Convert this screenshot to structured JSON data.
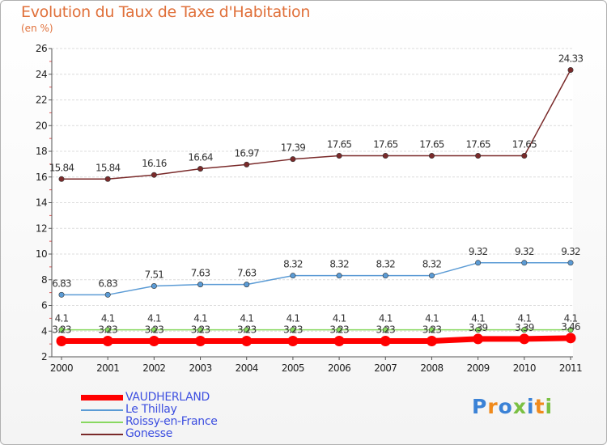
{
  "title": "Evolution du Taux de Taxe d'Habitation",
  "unit": "(en %)",
  "logo": "Proxiti",
  "chart_data": {
    "type": "line",
    "title": "Evolution du Taux de Taxe d'Habitation",
    "ylabel": "(en %)",
    "xlabel": "",
    "categories": [
      "2000",
      "2001",
      "2002",
      "2003",
      "2004",
      "2005",
      "2006",
      "2007",
      "2008",
      "2009",
      "2010",
      "2011"
    ],
    "ylim": [
      2,
      26
    ],
    "yticks": [
      2,
      4,
      6,
      8,
      10,
      12,
      14,
      16,
      18,
      20,
      22,
      24,
      26
    ],
    "series": [
      {
        "name": "VAUDHERLAND",
        "color": "#ff0000",
        "values": [
          3.23,
          3.23,
          3.23,
          3.23,
          3.23,
          3.23,
          3.23,
          3.23,
          3.23,
          3.39,
          3.39,
          3.46
        ],
        "labels": [
          "3.23",
          "3.23",
          "3.23",
          "3.23",
          "3.23",
          "3.23",
          "3.23",
          "3.23",
          "3.23",
          "3.39",
          "3.39",
          "3.46"
        ]
      },
      {
        "name": "Le Thillay",
        "color": "#5b9bd5",
        "values": [
          6.83,
          6.83,
          7.51,
          7.63,
          7.63,
          8.32,
          8.32,
          8.32,
          8.32,
          9.32,
          9.32,
          9.32
        ],
        "labels": [
          "6.83",
          "6.83",
          "7.51",
          "7.63",
          "7.63",
          "8.32",
          "8.32",
          "8.32",
          "8.32",
          "9.32",
          "9.32",
          "9.32"
        ]
      },
      {
        "name": "Roissy-en-France",
        "color": "#88d860",
        "values": [
          4.1,
          4.1,
          4.1,
          4.1,
          4.1,
          4.1,
          4.1,
          4.1,
          4.1,
          4.1,
          4.1,
          4.1
        ],
        "labels": [
          "4.1",
          "4.1",
          "4.1",
          "4.1",
          "4.1",
          "4.1",
          "4.1",
          "4.1",
          "4.1",
          "4.1",
          "4.1",
          "4.1"
        ]
      },
      {
        "name": "Gonesse",
        "color": "#7a2a2a",
        "values": [
          15.84,
          15.84,
          16.16,
          16.64,
          16.97,
          17.39,
          17.65,
          17.65,
          17.65,
          17.65,
          17.65,
          24.33
        ],
        "labels": [
          "15.84",
          "15.84",
          "16.16",
          "16.64",
          "16.97",
          "17.39",
          "17.65",
          "17.65",
          "17.65",
          "17.65",
          "17.65",
          "24.33"
        ]
      }
    ]
  }
}
